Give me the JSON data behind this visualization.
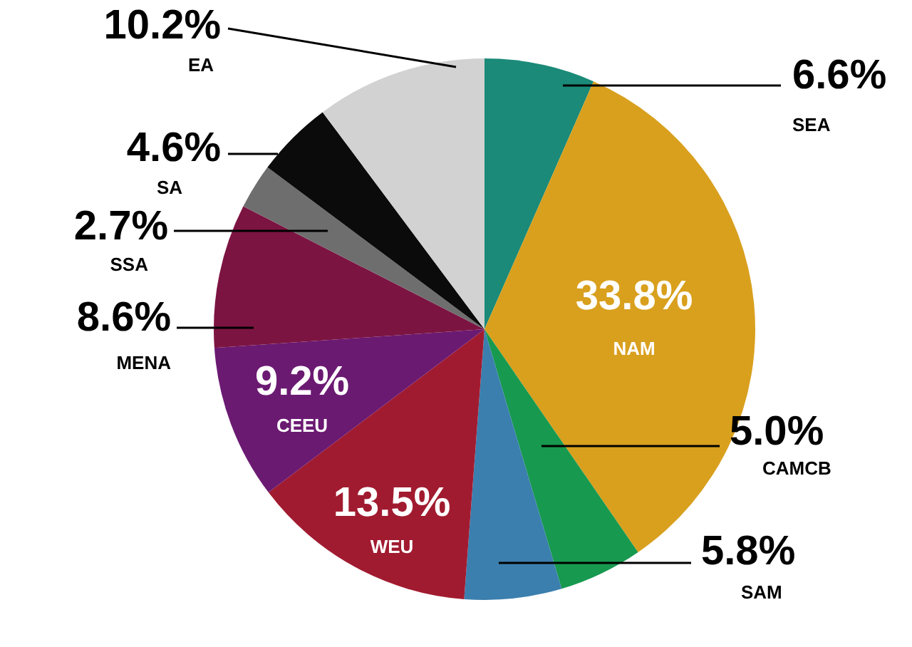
{
  "chart_data": {
    "type": "pie",
    "categories": [
      "SEA",
      "NAM",
      "CAMCB",
      "SAM",
      "WEU",
      "CEEU",
      "MENA",
      "SSA",
      "SA",
      "EA"
    ],
    "values": [
      6.6,
      33.8,
      5.0,
      5.8,
      13.5,
      9.2,
      8.6,
      2.7,
      4.6,
      10.2
    ],
    "value_labels": [
      "6.6%",
      "33.8%",
      "5.0%",
      "5.8%",
      "13.5%",
      "9.2%",
      "8.6%",
      "2.7%",
      "4.6%",
      "10.2%"
    ],
    "colors": [
      "#1b8a78",
      "#d9a01e",
      "#17994f",
      "#3b7fae",
      "#a11b30",
      "#6b1a72",
      "#7c1442",
      "#6e6e6e",
      "#0b0b0b",
      "#d2d2d2"
    ]
  }
}
